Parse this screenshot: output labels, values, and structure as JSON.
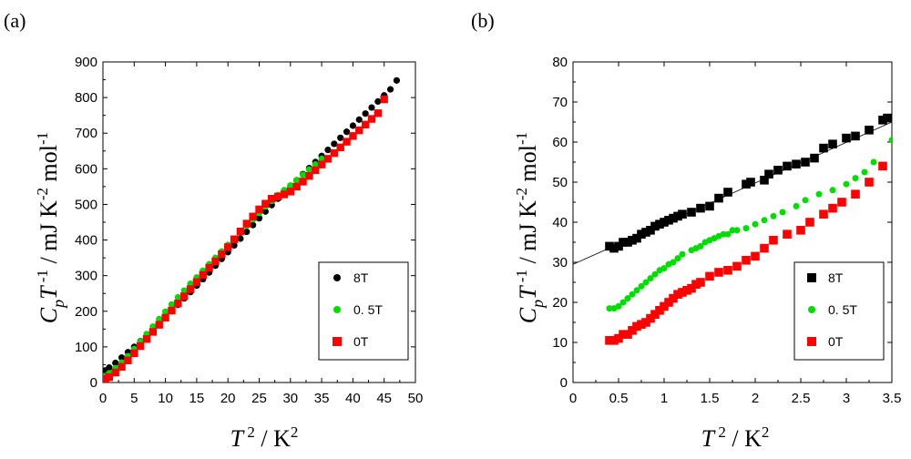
{
  "chart_data": [
    {
      "panel_label": "(a)",
      "type": "scatter",
      "xlabel": "T 2 / K2",
      "ylabel": "CpT -1 / mJ K-2 mol-1",
      "xlim": [
        0,
        50
      ],
      "ylim": [
        0,
        900
      ],
      "xticks": [
        "0",
        "5",
        "10",
        "15",
        "20",
        "25",
        "30",
        "35",
        "40",
        "45",
        "50"
      ],
      "yticks": [
        "0",
        "100",
        "200",
        "300",
        "400",
        "500",
        "600",
        "700",
        "800",
        "900"
      ],
      "legend_position": "bottom-right",
      "series": [
        {
          "name": "8T",
          "marker": "circle",
          "color": "#000000",
          "x": [
            0.4,
            1,
            2,
            3,
            4,
            5,
            6,
            7,
            8,
            9,
            10,
            11,
            12,
            13,
            14,
            15,
            16,
            17,
            18,
            19,
            20,
            21,
            22,
            23,
            24,
            25,
            26,
            27,
            28,
            29,
            30,
            31,
            32,
            33,
            34,
            35,
            36,
            37,
            38,
            39,
            40,
            41,
            42,
            43,
            44,
            45,
            46,
            47
          ],
          "y": [
            34,
            42,
            55,
            70,
            85,
            100,
            116,
            132,
            149,
            166,
            183,
            200,
            218,
            236,
            254,
            272,
            290,
            309,
            328,
            347,
            366,
            385,
            404,
            423,
            442,
            461,
            480,
            498,
            516,
            534,
            551,
            568,
            585,
            602,
            619,
            636,
            653,
            670,
            687,
            704,
            721,
            738,
            755,
            772,
            789,
            806,
            823,
            848
          ]
        },
        {
          "name": "0. 5T",
          "marker": "circle",
          "color": "#00dd00",
          "x": [
            0.4,
            1,
            2,
            3,
            4,
            5,
            6,
            7,
            8,
            9,
            10,
            11,
            12,
            13,
            14,
            15,
            16,
            17,
            18,
            19,
            20,
            21,
            22,
            23,
            24,
            25,
            26,
            27,
            28,
            29,
            30,
            31,
            32,
            33,
            34,
            35
          ],
          "y": [
            18,
            26,
            40,
            56,
            74,
            94,
            115,
            136,
            157,
            178,
            199,
            219,
            239,
            258,
            277,
            295,
            314,
            332,
            350,
            368,
            386,
            404,
            422,
            440,
            458,
            476,
            494,
            510,
            526,
            540,
            553,
            568,
            583,
            598,
            612,
            628
          ]
        },
        {
          "name": "0T",
          "marker": "square",
          "color": "#ff0000",
          "x": [
            0.4,
            1,
            2,
            3,
            4,
            5,
            6,
            7,
            8,
            9,
            10,
            11,
            12,
            13,
            14,
            15,
            16,
            17,
            18,
            19,
            20,
            21,
            22,
            23,
            24,
            25,
            26,
            27,
            28,
            29,
            30,
            31,
            32,
            33,
            34,
            35,
            36,
            37,
            38,
            39,
            40,
            41,
            42,
            43,
            44,
            45
          ],
          "y": [
            10,
            15,
            28,
            44,
            62,
            82,
            102,
            122,
            142,
            162,
            182,
            202,
            222,
            242,
            262,
            282,
            302,
            322,
            340,
            360,
            380,
            402,
            424,
            446,
            466,
            486,
            502,
            516,
            522,
            528,
            536,
            550,
            564,
            580,
            596,
            612,
            628,
            644,
            660,
            676,
            692,
            708,
            724,
            740,
            756,
            795
          ]
        }
      ]
    },
    {
      "panel_label": "(b)",
      "type": "scatter",
      "xlabel": "T 2 / K2",
      "ylabel": "CpT -1 / mJ K-2 mol-1",
      "xlim": [
        0,
        3.5
      ],
      "ylim": [
        0,
        80
      ],
      "xticks": [
        "0",
        "0.5",
        "1",
        "1.5",
        "2",
        "2.5",
        "3",
        "3.5"
      ],
      "yticks": [
        "0",
        "10",
        "20",
        "30",
        "40",
        "50",
        "60",
        "70",
        "80"
      ],
      "legend_position": "bottom-right",
      "fit_line": {
        "x": [
          0,
          3.5
        ],
        "y": [
          29.5,
          65
        ]
      },
      "series": [
        {
          "name": "8T",
          "marker": "square",
          "color": "#000000",
          "x": [
            0.4,
            0.45,
            0.5,
            0.55,
            0.6,
            0.65,
            0.7,
            0.75,
            0.8,
            0.85,
            0.9,
            0.95,
            1.0,
            1.05,
            1.1,
            1.15,
            1.2,
            1.3,
            1.4,
            1.5,
            1.6,
            1.7,
            1.9,
            1.95,
            2.1,
            2.15,
            2.25,
            2.35,
            2.45,
            2.55,
            2.65,
            2.75,
            2.85,
            3.0,
            3.1,
            3.25,
            3.4,
            3.45
          ],
          "y": [
            34,
            33.5,
            34,
            35,
            35,
            35.5,
            36,
            37,
            37.5,
            38,
            39,
            39.5,
            40,
            40.5,
            41,
            41.5,
            42,
            42.5,
            43.5,
            44,
            46,
            47.5,
            49.5,
            50,
            50.5,
            52,
            53,
            54,
            54.5,
            55,
            56,
            58.5,
            59.5,
            61,
            61.5,
            63,
            65.5,
            66
          ]
        },
        {
          "name": "0. 5T",
          "marker": "circle",
          "color": "#00dd00",
          "x": [
            0.4,
            0.45,
            0.5,
            0.55,
            0.6,
            0.65,
            0.7,
            0.75,
            0.8,
            0.85,
            0.9,
            0.95,
            1.0,
            1.05,
            1.1,
            1.15,
            1.2,
            1.3,
            1.35,
            1.4,
            1.45,
            1.5,
            1.55,
            1.6,
            1.65,
            1.7,
            1.75,
            1.8,
            1.9,
            2.0,
            2.1,
            2.2,
            2.3,
            2.45,
            2.55,
            2.7,
            2.85,
            3.0,
            3.1,
            3.2,
            3.3,
            3.5
          ],
          "y": [
            18.5,
            18.5,
            19,
            20,
            21,
            22,
            23,
            24,
            25,
            26,
            27,
            28,
            28.5,
            29.5,
            30,
            31,
            32,
            33,
            33.5,
            34,
            35,
            35.5,
            36,
            36.5,
            37,
            37,
            38,
            38,
            38.5,
            39.5,
            40.5,
            41.5,
            42.5,
            44,
            45.5,
            47,
            48,
            49.5,
            51,
            52.5,
            55,
            60.5
          ]
        },
        {
          "name": "0T",
          "marker": "square",
          "color": "#ff0000",
          "x": [
            0.4,
            0.45,
            0.5,
            0.55,
            0.6,
            0.65,
            0.7,
            0.75,
            0.8,
            0.85,
            0.9,
            0.95,
            1.0,
            1.05,
            1.1,
            1.15,
            1.2,
            1.25,
            1.3,
            1.35,
            1.4,
            1.5,
            1.6,
            1.7,
            1.8,
            1.9,
            2.0,
            2.1,
            2.2,
            2.35,
            2.5,
            2.6,
            2.75,
            2.85,
            2.95,
            3.1,
            3.25,
            3.4
          ],
          "y": [
            10.5,
            10.5,
            11,
            12,
            12,
            13,
            14,
            14.5,
            15,
            16,
            17,
            18,
            19,
            20,
            21,
            22,
            22.5,
            23,
            23.5,
            24.5,
            25,
            26.5,
            27.5,
            28,
            29,
            30.5,
            31.5,
            33.5,
            35.5,
            37,
            38,
            40,
            42,
            43.5,
            45,
            47,
            50,
            54
          ]
        }
      ]
    }
  ]
}
